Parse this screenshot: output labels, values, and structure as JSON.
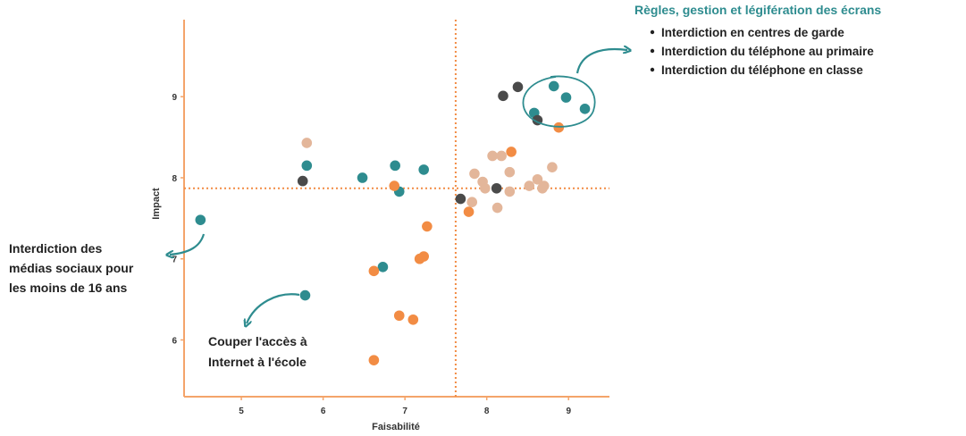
{
  "chart_data": {
    "type": "scatter",
    "xlabel": "Faisabilité",
    "ylabel": "Impact",
    "xlim": [
      4.3,
      9.5
    ],
    "ylim": [
      5.3,
      9.95
    ],
    "x_ticks": [
      5,
      6,
      7,
      8,
      9
    ],
    "y_ticks": [
      6,
      7,
      8,
      9
    ],
    "grid": false,
    "reference_lines": {
      "x": 7.62,
      "y": 7.87
    },
    "colors": {
      "teal": "#2e8c8f",
      "dark": "#4a4a4a",
      "orange": "#f28c44",
      "tan": "#e3b69a",
      "axis": "#f4a46a",
      "refline": "#f28c44"
    },
    "series": [
      {
        "color_key": "teal",
        "points": [
          [
            4.5,
            7.48
          ],
          [
            5.8,
            8.15
          ],
          [
            5.78,
            6.55
          ],
          [
            6.48,
            8.0
          ],
          [
            6.88,
            8.15
          ],
          [
            6.93,
            7.83
          ],
          [
            7.23,
            8.1
          ],
          [
            6.73,
            6.9
          ],
          [
            8.82,
            9.13
          ],
          [
            8.97,
            8.99
          ],
          [
            9.2,
            8.85
          ],
          [
            8.58,
            8.8
          ]
        ]
      },
      {
        "color_key": "dark",
        "points": [
          [
            5.75,
            7.96
          ],
          [
            7.68,
            7.74
          ],
          [
            8.12,
            7.87
          ],
          [
            8.2,
            9.01
          ],
          [
            8.38,
            9.12
          ],
          [
            8.62,
            8.71
          ]
        ]
      },
      {
        "color_key": "orange",
        "points": [
          [
            6.62,
            5.75
          ],
          [
            6.62,
            6.85
          ],
          [
            6.93,
            6.3
          ],
          [
            7.1,
            6.25
          ],
          [
            7.18,
            7.0
          ],
          [
            7.23,
            7.03
          ],
          [
            7.27,
            7.4
          ],
          [
            6.87,
            7.9
          ],
          [
            7.78,
            7.58
          ],
          [
            8.3,
            8.32
          ],
          [
            8.88,
            8.62
          ]
        ]
      },
      {
        "color_key": "tan",
        "points": [
          [
            5.8,
            8.43
          ],
          [
            7.82,
            7.7
          ],
          [
            7.85,
            8.05
          ],
          [
            7.95,
            7.95
          ],
          [
            7.98,
            7.87
          ],
          [
            8.07,
            8.27
          ],
          [
            8.13,
            7.63
          ],
          [
            8.18,
            8.27
          ],
          [
            8.28,
            8.07
          ],
          [
            8.28,
            7.83
          ],
          [
            8.52,
            7.9
          ],
          [
            8.62,
            7.98
          ],
          [
            8.68,
            7.87
          ],
          [
            8.7,
            7.9
          ],
          [
            8.8,
            8.13
          ]
        ]
      }
    ],
    "annotations": [
      {
        "id": "social",
        "lines": [
          "Interdiction des",
          "médias sociaux pour",
          "les moins de 16 ans"
        ]
      },
      {
        "id": "internet",
        "lines": [
          "Couper l'accès à",
          "Internet à l'école"
        ]
      }
    ],
    "legend": {
      "title": "Règles, gestion et légifération des écrans",
      "items": [
        "Interdiction en centres de garde",
        "Interdiction du téléphone au primaire",
        "Interdiction du téléphone en classe"
      ]
    }
  }
}
